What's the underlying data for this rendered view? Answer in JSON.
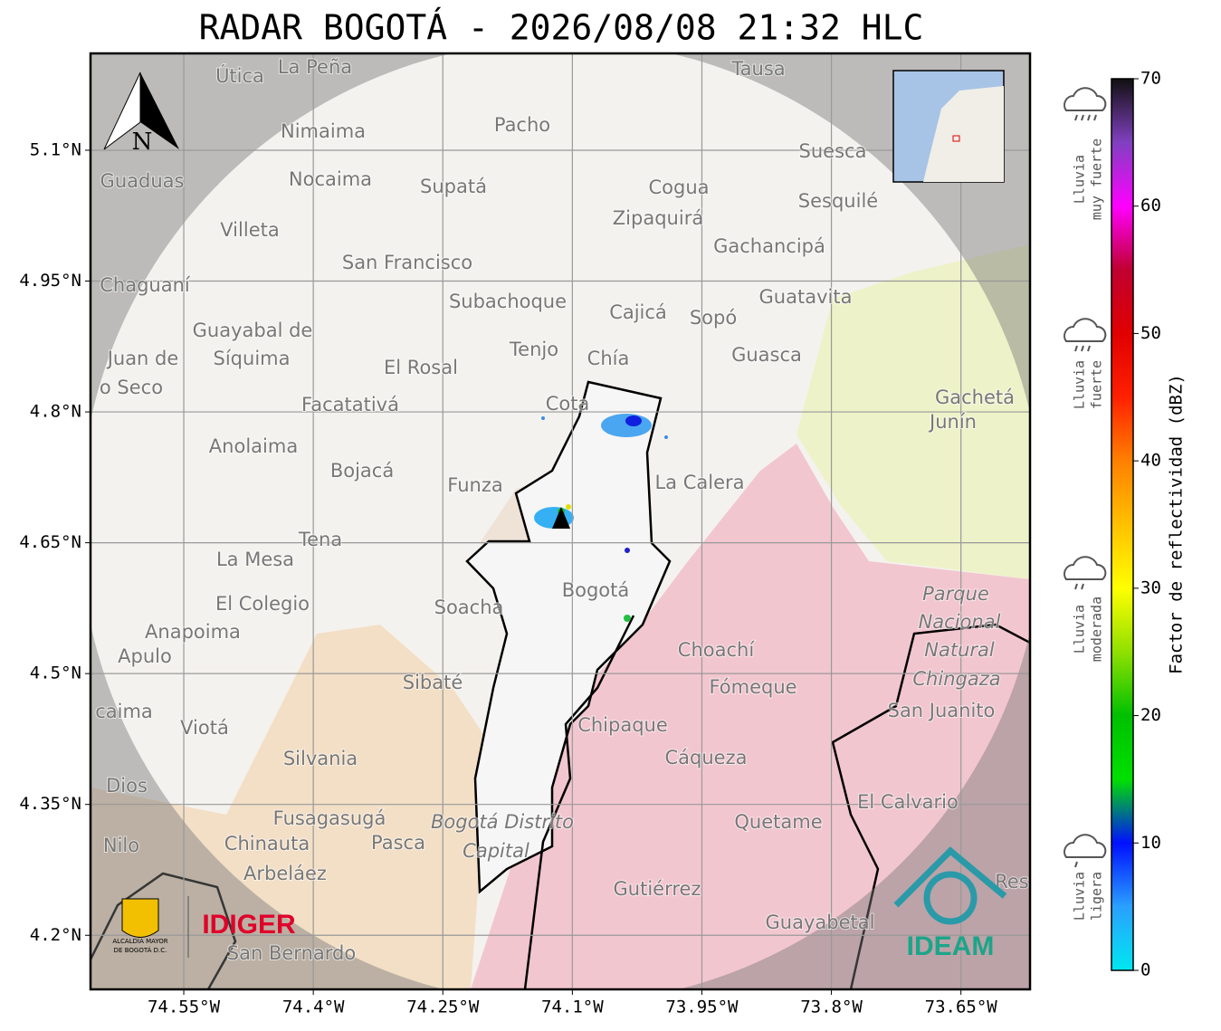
{
  "title": "RADAR BOGOTÁ - 2026/08/08 21:32 HLC",
  "map": {
    "xlim": [
      -74.658,
      -73.57
    ],
    "ylim": [
      4.138,
      5.211
    ],
    "xticks": [
      {
        "value": -74.55,
        "label": "74.55°W"
      },
      {
        "value": -74.4,
        "label": "74.4°W"
      },
      {
        "value": -74.25,
        "label": "74.25°W"
      },
      {
        "value": -74.1,
        "label": "74.1°W"
      },
      {
        "value": -73.95,
        "label": "73.95°W"
      },
      {
        "value": -73.8,
        "label": "73.8°W"
      },
      {
        "value": -73.65,
        "label": "73.65°W"
      }
    ],
    "yticks": [
      {
        "value": 5.1,
        "label": "5.1°N"
      },
      {
        "value": 4.95,
        "label": "4.95°N"
      },
      {
        "value": 4.8,
        "label": "4.8°N"
      },
      {
        "value": 4.65,
        "label": "4.65°N"
      },
      {
        "value": 4.5,
        "label": "4.5°N"
      },
      {
        "value": 4.35,
        "label": "4.35°N"
      },
      {
        "value": 4.2,
        "label": "4.2°N"
      }
    ],
    "north_label": "N",
    "places": [
      "La Peña",
      "Útica",
      "Tausa",
      "Pacho",
      "Nimaima",
      "Guaduas",
      "Nocaima",
      "Supatá",
      "Cogua",
      "Suesca",
      "Sesquilé",
      "Zipaquirá",
      "Villeta",
      "Gachancipá",
      "San Francisco",
      "Chaguaní",
      "Guatavita",
      "Subachoque",
      "Cajicá",
      "Sopó",
      "Guayabal de",
      "Síquima",
      "Juan de",
      "o Seco",
      "Tenjo",
      "Chía",
      "El Rosal",
      "Guasca",
      "Facatativá",
      "Gachetá",
      "Junín",
      "Cota",
      "Anolaima",
      "Bojacá",
      "Funza",
      "La Calera",
      "Tena",
      "La Mesa",
      "Bogotá",
      "El Colegio",
      "Soacha",
      "Parque",
      "Nacional",
      "Natural",
      "Chingaza",
      "Anapoima",
      "Apulo",
      "Choachí",
      "Sibaté",
      "Fómeque",
      "caima",
      "San Juanito",
      "Viotá",
      "Chipaque",
      "Silvania",
      "Cáqueza",
      "Dios",
      "El Calvario",
      "Fusagasugá",
      "Bogotá Distrito",
      "Quetame",
      "Nilo",
      "Chinauta",
      "Pasca",
      "Capital",
      "Arbeláez",
      "Gutiérrez",
      "Res",
      "Guayabetal",
      "San Bernardo"
    ]
  },
  "colorbar": {
    "label": "Factor de reflectividad (dBZ)",
    "lim": [
      0,
      70
    ],
    "ticks": [
      0,
      10,
      20,
      30,
      40,
      50,
      60,
      70
    ],
    "stops": [
      {
        "value": 0,
        "color": "#00e8f0"
      },
      {
        "value": 5,
        "color": "#2aa0ff"
      },
      {
        "value": 10,
        "color": "#0010ff"
      },
      {
        "value": 15,
        "color": "#00e000"
      },
      {
        "value": 20,
        "color": "#00c000"
      },
      {
        "value": 25,
        "color": "#90e000"
      },
      {
        "value": 30,
        "color": "#ffff00"
      },
      {
        "value": 35,
        "color": "#ffc000"
      },
      {
        "value": 40,
        "color": "#ff8000"
      },
      {
        "value": 45,
        "color": "#ff2000"
      },
      {
        "value": 50,
        "color": "#e00000"
      },
      {
        "value": 55,
        "color": "#c00030"
      },
      {
        "value": 60,
        "color": "#ff00ff"
      },
      {
        "value": 65,
        "color": "#8040c0"
      },
      {
        "value": 70,
        "color": "#101010"
      }
    ]
  },
  "rain_legend": [
    [
      "Lluvia",
      "muy fuerte"
    ],
    [
      "Lluvia",
      "fuerte"
    ],
    [
      "Lluvia",
      "moderada"
    ],
    [
      "Lluvia",
      "ligera"
    ]
  ],
  "logos": {
    "alcaldia": [
      "ALCALDÍA MAYOR",
      "DE BOGOTÁ D.C."
    ],
    "idiger": "IDIGER",
    "ideam": "IDEAM"
  }
}
